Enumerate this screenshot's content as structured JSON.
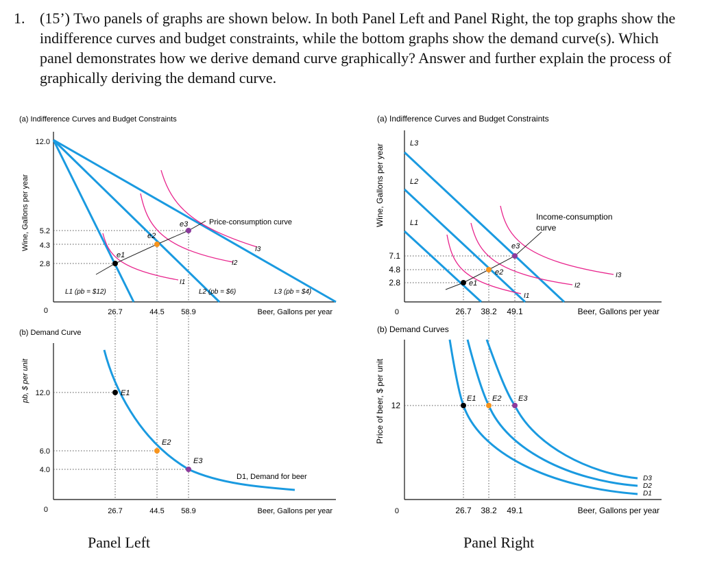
{
  "question": {
    "number": "1.",
    "text": "(15’) Two panels of graphs are shown below. In both Panel Left and Panel Right, the top graphs show the indifference curves and budget constraints, while the bottom graphs show the demand curve(s). Which panel demonstrates how we derive demand curve graphically? Answer and further explain the process of graphically deriving the demand curve."
  },
  "colors": {
    "budget": "#1a9ae0",
    "indifference": "#e8238c",
    "e1": "#000000",
    "e2": "#f7941d",
    "e3": "#8b3b9c",
    "dotted": "#555555"
  },
  "left": {
    "caption": "Panel Left",
    "top": {
      "title": "(a) Indifference Curves and Budget Constraints",
      "ylabel": "Wine, Gallons per year",
      "xlabel": "Beer, Gallons per year",
      "origin": "0",
      "yticks": [
        "12.0",
        "5.2",
        "4.3",
        "2.8"
      ],
      "xticks": [
        "26.7",
        "44.5",
        "58.9"
      ],
      "point_labels": [
        "e1",
        "e2",
        "e3"
      ],
      "curve_labels": [
        "I1",
        "I2",
        "I3"
      ],
      "budget_labels": [
        "L1 (pb = $12)",
        "L2 (pb = $6)",
        "L3 (pb = $4)"
      ],
      "pcc_label": "Price-consumption curve"
    },
    "bottom": {
      "title": "(b) Demand Curve",
      "ylabel": "pb, $ per unit",
      "xlabel": "Beer, Gallons per year",
      "origin": "0",
      "yticks": [
        "12.0",
        "6.0",
        "4.0"
      ],
      "xticks": [
        "26.7",
        "44.5",
        "58.9"
      ],
      "point_labels": [
        "E1",
        "E2",
        "E3"
      ],
      "demand_label": "D1, Demand for beer"
    }
  },
  "right": {
    "caption": "Panel Right",
    "top": {
      "title": "(a) Indifference Curves and Budget Constraints",
      "ylabel": "Wine, Gallons per year",
      "xlabel": "Beer, Gallons per year",
      "origin": "0",
      "yticks": [
        "7.1",
        "4.8",
        "2.8"
      ],
      "xticks": [
        "26.7",
        "38.2",
        "49.1"
      ],
      "budget_labels": [
        "L3",
        "L2",
        "L1"
      ],
      "point_labels": [
        "e1",
        "e2",
        "e3"
      ],
      "curve_labels": [
        "I1",
        "I2",
        "I3"
      ],
      "icc_label_1": "Income-consumption",
      "icc_label_2": "curve"
    },
    "bottom": {
      "title": "(b) Demand Curves",
      "ylabel": "Price of beer, $ per unit",
      "xlabel": "Beer, Gallons per year",
      "origin": "0",
      "yticks": [
        "12"
      ],
      "xticks": [
        "26.7",
        "38.2",
        "49.1"
      ],
      "point_labels": [
        "E1",
        "E2",
        "E3"
      ],
      "demand_labels": [
        "D3",
        "D2",
        "D1"
      ]
    }
  }
}
